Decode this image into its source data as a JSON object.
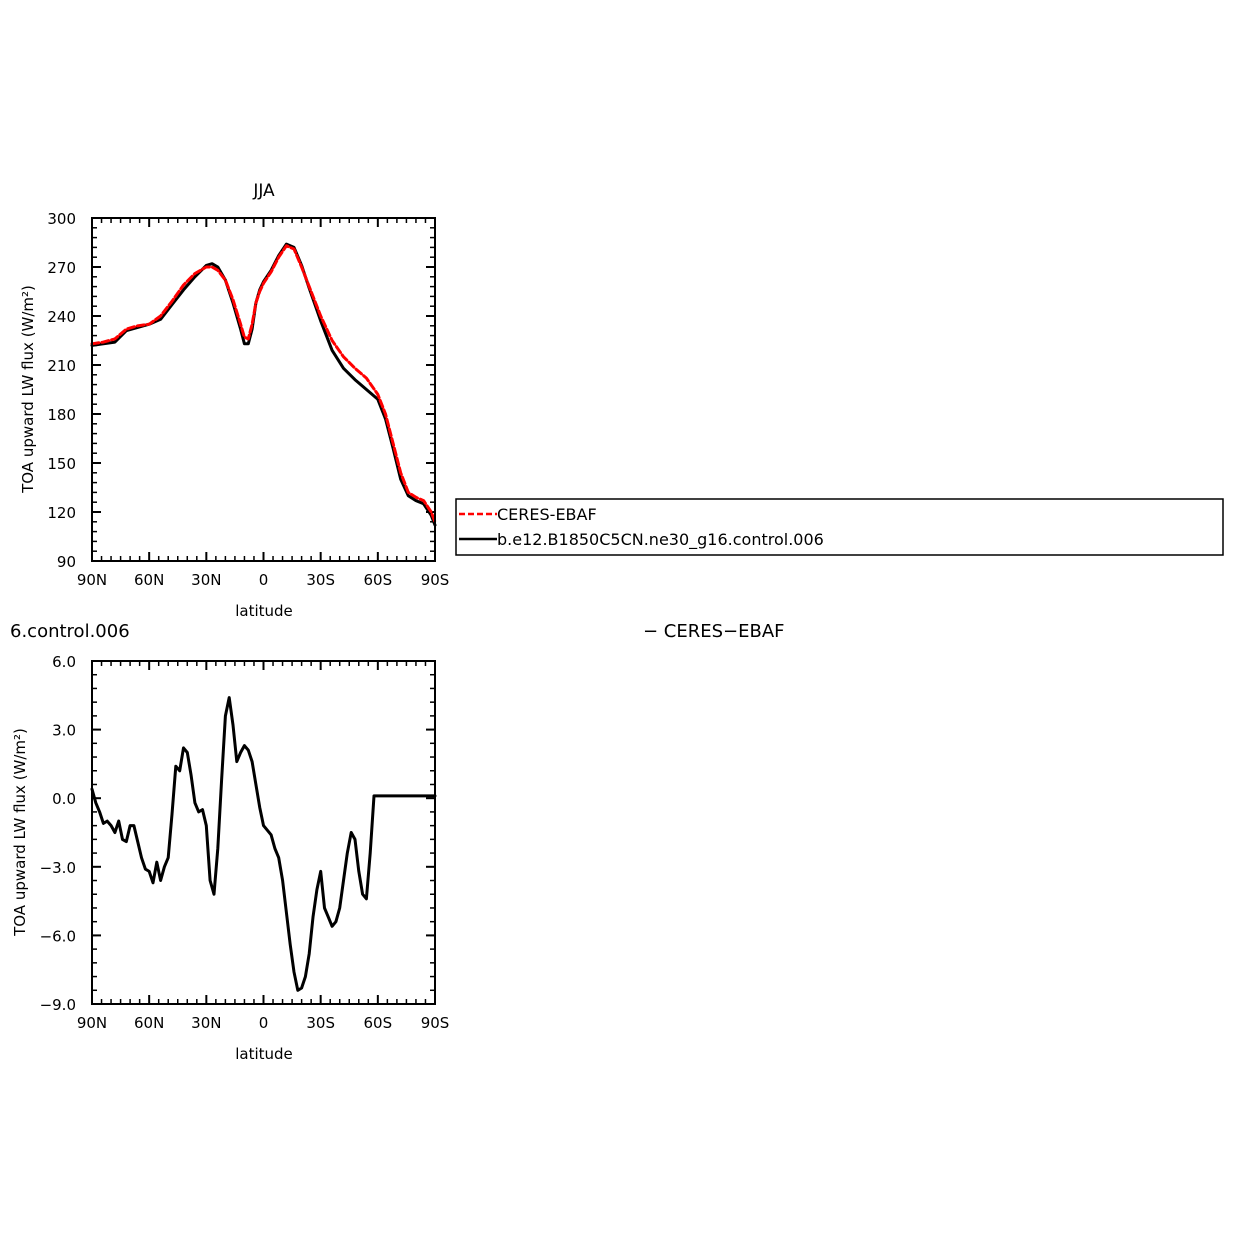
{
  "chart_data": [
    {
      "type": "line",
      "title": "JJA",
      "xlabel": "latitude",
      "ylabel": "TOA upward LW flux (W/m²)",
      "xlim": [
        90,
        -90
      ],
      "ylim": [
        90,
        300
      ],
      "xticks": [
        90,
        60,
        30,
        0,
        -30,
        -60,
        -90
      ],
      "xtick_labels": [
        "90N",
        "60N",
        "30N",
        "0",
        "30S",
        "60S",
        "90S"
      ],
      "yticks": [
        90,
        120,
        150,
        180,
        210,
        240,
        270,
        300
      ],
      "ytick_labels": [
        "90",
        "120",
        "150",
        "180",
        "210",
        "240",
        "270",
        "300"
      ],
      "legend": {
        "placement": "right",
        "entries": [
          "CERES-EBAF",
          "b.e12.B1850C5CN.ne30_g16.control.006"
        ]
      },
      "series": [
        {
          "name": "CERES-EBAF",
          "color": "#ff0000",
          "style": "dashed",
          "x": [
            90,
            84,
            78,
            72,
            66,
            60,
            54,
            48,
            42,
            36,
            30,
            27,
            24,
            20,
            16,
            12,
            10,
            8,
            6,
            4,
            2,
            0,
            -4,
            -8,
            -12,
            -16,
            -20,
            -24,
            -30,
            -36,
            -42,
            -48,
            -54,
            -60,
            -64,
            -68,
            -72,
            -76,
            -80,
            -84,
            -88,
            -90
          ],
          "y": [
            223,
            224,
            226,
            232,
            234,
            235,
            240,
            249,
            259,
            266,
            270,
            270,
            268,
            262,
            250,
            235,
            227,
            226,
            235,
            248,
            255,
            260,
            267,
            276,
            283,
            281,
            270,
            258,
            240,
            225,
            215,
            208,
            202,
            192,
            180,
            162,
            144,
            132,
            129,
            127,
            120,
            114
          ]
        },
        {
          "name": "b.e12.B1850C5CN.ne30_g16.control.006",
          "color": "#000000",
          "style": "solid",
          "x": [
            90,
            84,
            78,
            72,
            66,
            60,
            54,
            48,
            42,
            36,
            30,
            27,
            24,
            20,
            16,
            12,
            10,
            8,
            6,
            4,
            2,
            0,
            -4,
            -8,
            -12,
            -16,
            -20,
            -24,
            -30,
            -36,
            -42,
            -48,
            -54,
            -60,
            -64,
            -68,
            -72,
            -76,
            -80,
            -84,
            -88,
            -90
          ],
          "y": [
            222,
            223,
            224,
            231,
            233,
            235,
            238,
            247,
            256,
            264,
            271,
            272,
            270,
            262,
            248,
            232,
            223,
            223,
            232,
            248,
            256,
            261,
            268,
            277,
            284,
            282,
            271,
            257,
            237,
            219,
            208,
            201,
            195,
            189,
            177,
            159,
            140,
            130,
            127,
            125,
            118,
            112
          ]
        }
      ]
    },
    {
      "type": "line",
      "title": "",
      "xlabel": "latitude",
      "ylabel": "TOA upward LW flux (W/m²)",
      "xlim": [
        90,
        -90
      ],
      "ylim": [
        -9,
        6
      ],
      "xticks": [
        90,
        60,
        30,
        0,
        -30,
        -60,
        -90
      ],
      "xtick_labels": [
        "90N",
        "60N",
        "30N",
        "0",
        "30S",
        "60S",
        "90S"
      ],
      "yticks": [
        -9,
        -6,
        -3,
        0,
        3,
        6
      ],
      "ytick_labels": [
        "−9.0",
        "−6.0",
        "−3.0",
        "0.0",
        "3.0",
        "6.0"
      ],
      "partial_header_left": "6.control.006",
      "partial_header_right": "− CERES−EBAF",
      "series": [
        {
          "color": "#000000",
          "style": "solid",
          "x": [
            90,
            88,
            86,
            84,
            82,
            80,
            78,
            76,
            74,
            72,
            70,
            68,
            66,
            64,
            62,
            60,
            58,
            56,
            54,
            52,
            50,
            48,
            46,
            44,
            42,
            40,
            38,
            36,
            34,
            32,
            30,
            28,
            26,
            24,
            22,
            20,
            18,
            16,
            14,
            12,
            10,
            8,
            6,
            4,
            2,
            0,
            -2,
            -4,
            -6,
            -8,
            -10,
            -12,
            -14,
            -16,
            -18,
            -20,
            -22,
            -24,
            -26,
            -28,
            -30,
            -32,
            -34,
            -36,
            -38,
            -40,
            -42,
            -44,
            -46,
            -48,
            -50,
            -52,
            -54,
            -56,
            -58,
            -60,
            -62,
            -64,
            -66,
            -68,
            -70,
            -72,
            -74,
            -76,
            -78,
            -80,
            -82,
            -84,
            -86,
            -88,
            -90
          ],
          "y": [
            0.4,
            -0.2,
            -0.6,
            -1.1,
            -1.0,
            -1.2,
            -1.5,
            -1.0,
            -1.8,
            -1.9,
            -1.2,
            -1.2,
            -1.9,
            -2.6,
            -3.1,
            -3.2,
            -3.7,
            -2.8,
            -3.6,
            -3.0,
            -2.6,
            -0.7,
            1.4,
            1.2,
            2.2,
            2.0,
            1.0,
            -0.2,
            -0.6,
            -0.5,
            -1.2,
            -3.6,
            -4.2,
            -2.2,
            0.8,
            3.6,
            4.4,
            3.2,
            1.6,
            2.0,
            2.3,
            2.1,
            1.6,
            0.6,
            -0.4,
            -1.2,
            -1.4,
            -1.6,
            -2.2,
            -2.6,
            -3.6,
            -5.0,
            -6.4,
            -7.6,
            -8.4,
            -8.3,
            -7.8,
            -6.8,
            -5.2,
            -4.0,
            -3.2,
            -4.8,
            -5.2,
            -5.6,
            -5.4,
            -4.8,
            -3.6,
            -2.4,
            -1.5,
            -1.8,
            -3.2,
            -4.2,
            -4.4,
            -2.4,
            0.1,
            0.1,
            0.1,
            0.1,
            0.1,
            0.1,
            0.1,
            0.1,
            0.1,
            0.1,
            0.1,
            0.1,
            0.1,
            0.1,
            0.1,
            0.1,
            0.1
          ]
        }
      ]
    }
  ]
}
